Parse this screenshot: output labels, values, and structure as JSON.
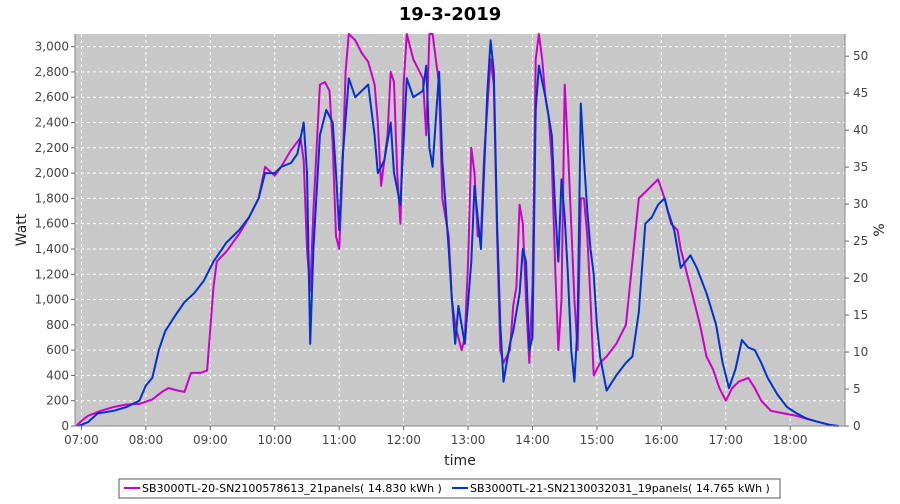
{
  "chart_data": {
    "type": "line",
    "title": "19-3-2019",
    "xlabel": "time",
    "ylabel": "Watt",
    "y2label": "%",
    "xlim": [
      6.9,
      18.85
    ],
    "ylim": [
      0,
      3100
    ],
    "y2lim": [
      0,
      53
    ],
    "x_ticks": [
      "07:00",
      "08:00",
      "09:00",
      "10:00",
      "11:00",
      "12:00",
      "13:00",
      "14:00",
      "15:00",
      "16:00",
      "17:00",
      "18:00"
    ],
    "y_ticks": [
      "0",
      "200",
      "400",
      "600",
      "800",
      "1,000",
      "1,200",
      "1,400",
      "1,600",
      "1,800",
      "2,000",
      "2,200",
      "2,400",
      "2,600",
      "2,800",
      "3,000"
    ],
    "y2_ticks": [
      "0",
      "5",
      "10",
      "15",
      "20",
      "25",
      "30",
      "35",
      "40",
      "45",
      "50"
    ],
    "grid": true,
    "legend_position": "bottom",
    "background": "#c8c8c8",
    "series": [
      {
        "name": "SB3000TL-20-SN2100578613_21panels( 14.830 kWh )",
        "color": "#cc00cc",
        "points": [
          [
            6.92,
            0
          ],
          [
            7.0,
            40
          ],
          [
            7.1,
            80
          ],
          [
            7.3,
            120
          ],
          [
            7.5,
            150
          ],
          [
            7.7,
            170
          ],
          [
            7.9,
            175
          ],
          [
            8.1,
            210
          ],
          [
            8.25,
            270
          ],
          [
            8.35,
            300
          ],
          [
            8.5,
            280
          ],
          [
            8.6,
            270
          ],
          [
            8.7,
            420
          ],
          [
            8.85,
            420
          ],
          [
            8.95,
            440
          ],
          [
            9.05,
            1100
          ],
          [
            9.1,
            1300
          ],
          [
            9.25,
            1380
          ],
          [
            9.45,
            1520
          ],
          [
            9.6,
            1650
          ],
          [
            9.75,
            1800
          ],
          [
            9.85,
            2050
          ],
          [
            10.0,
            1980
          ],
          [
            10.1,
            2050
          ],
          [
            10.25,
            2180
          ],
          [
            10.4,
            2280
          ],
          [
            10.45,
            2100
          ],
          [
            10.5,
            1400
          ],
          [
            10.55,
            1070
          ],
          [
            10.6,
            1700
          ],
          [
            10.7,
            2700
          ],
          [
            10.78,
            2720
          ],
          [
            10.85,
            2650
          ],
          [
            10.9,
            2230
          ],
          [
            10.95,
            1500
          ],
          [
            11.0,
            1400
          ],
          [
            11.05,
            2000
          ],
          [
            11.1,
            2800
          ],
          [
            11.15,
            3100
          ],
          [
            11.25,
            3050
          ],
          [
            11.35,
            2950
          ],
          [
            11.45,
            2880
          ],
          [
            11.55,
            2700
          ],
          [
            11.6,
            2400
          ],
          [
            11.65,
            1900
          ],
          [
            11.75,
            2300
          ],
          [
            11.8,
            2800
          ],
          [
            11.85,
            2720
          ],
          [
            11.9,
            2000
          ],
          [
            11.95,
            1600
          ],
          [
            12.0,
            2700
          ],
          [
            12.05,
            3100
          ],
          [
            12.15,
            2900
          ],
          [
            12.3,
            2750
          ],
          [
            12.35,
            2300
          ],
          [
            12.4,
            3100
          ],
          [
            12.45,
            3100
          ],
          [
            12.55,
            2700
          ],
          [
            12.6,
            1800
          ],
          [
            12.7,
            1500
          ],
          [
            12.75,
            1000
          ],
          [
            12.8,
            800
          ],
          [
            12.9,
            600
          ],
          [
            12.95,
            700
          ],
          [
            13.0,
            1300
          ],
          [
            13.05,
            2200
          ],
          [
            13.1,
            2000
          ],
          [
            13.15,
            1500
          ],
          [
            13.2,
            1500
          ],
          [
            13.25,
            2150
          ],
          [
            13.35,
            2900
          ],
          [
            13.4,
            2700
          ],
          [
            13.45,
            1500
          ],
          [
            13.5,
            600
          ],
          [
            13.55,
            500
          ],
          [
            13.65,
            600
          ],
          [
            13.7,
            950
          ],
          [
            13.75,
            1100
          ],
          [
            13.8,
            1750
          ],
          [
            13.85,
            1600
          ],
          [
            13.9,
            1000
          ],
          [
            13.95,
            500
          ],
          [
            14.0,
            1100
          ],
          [
            14.05,
            2900
          ],
          [
            14.1,
            3100
          ],
          [
            14.15,
            2900
          ],
          [
            14.2,
            2600
          ],
          [
            14.25,
            2450
          ],
          [
            14.3,
            2100
          ],
          [
            14.35,
            1300
          ],
          [
            14.4,
            600
          ],
          [
            14.45,
            1000
          ],
          [
            14.5,
            2700
          ],
          [
            14.55,
            2200
          ],
          [
            14.6,
            1600
          ],
          [
            14.65,
            1000
          ],
          [
            14.7,
            600
          ],
          [
            14.75,
            1800
          ],
          [
            14.8,
            1800
          ],
          [
            14.85,
            1500
          ],
          [
            14.9,
            1000
          ],
          [
            14.95,
            400
          ],
          [
            15.05,
            500
          ],
          [
            15.15,
            550
          ],
          [
            15.3,
            650
          ],
          [
            15.45,
            800
          ],
          [
            15.55,
            1300
          ],
          [
            15.65,
            1800
          ],
          [
            15.75,
            1850
          ],
          [
            15.85,
            1900
          ],
          [
            15.95,
            1950
          ],
          [
            16.05,
            1800
          ],
          [
            16.15,
            1600
          ],
          [
            16.25,
            1550
          ],
          [
            16.3,
            1400
          ],
          [
            16.4,
            1200
          ],
          [
            16.5,
            1000
          ],
          [
            16.6,
            800
          ],
          [
            16.7,
            550
          ],
          [
            16.8,
            450
          ],
          [
            16.9,
            300
          ],
          [
            17.0,
            200
          ],
          [
            17.1,
            300
          ],
          [
            17.2,
            350
          ],
          [
            17.35,
            380
          ],
          [
            17.45,
            300
          ],
          [
            17.55,
            200
          ],
          [
            17.7,
            120
          ],
          [
            17.9,
            100
          ],
          [
            18.1,
            80
          ],
          [
            18.3,
            50
          ],
          [
            18.45,
            30
          ],
          [
            18.6,
            10
          ],
          [
            18.7,
            0
          ]
        ]
      },
      {
        "name": "SB3000TL-21-SN2130032031_19panels( 14.765 kWh )",
        "color": "#0033cc",
        "points": [
          [
            6.95,
            0
          ],
          [
            7.1,
            30
          ],
          [
            7.25,
            100
          ],
          [
            7.5,
            120
          ],
          [
            7.7,
            150
          ],
          [
            7.9,
            200
          ],
          [
            8.0,
            320
          ],
          [
            8.1,
            380
          ],
          [
            8.2,
            600
          ],
          [
            8.3,
            750
          ],
          [
            8.45,
            870
          ],
          [
            8.6,
            980
          ],
          [
            8.75,
            1050
          ],
          [
            8.9,
            1150
          ],
          [
            9.05,
            1300
          ],
          [
            9.25,
            1450
          ],
          [
            9.45,
            1550
          ],
          [
            9.6,
            1650
          ],
          [
            9.75,
            1800
          ],
          [
            9.85,
            2000
          ],
          [
            10.0,
            2000
          ],
          [
            10.1,
            2050
          ],
          [
            10.25,
            2080
          ],
          [
            10.35,
            2150
          ],
          [
            10.45,
            2400
          ],
          [
            10.5,
            2000
          ],
          [
            10.55,
            650
          ],
          [
            10.6,
            1400
          ],
          [
            10.7,
            2300
          ],
          [
            10.8,
            2500
          ],
          [
            10.9,
            2400
          ],
          [
            10.95,
            2000
          ],
          [
            11.0,
            1550
          ],
          [
            11.05,
            2100
          ],
          [
            11.15,
            2750
          ],
          [
            11.25,
            2600
          ],
          [
            11.35,
            2650
          ],
          [
            11.45,
            2700
          ],
          [
            11.55,
            2300
          ],
          [
            11.6,
            2000
          ],
          [
            11.7,
            2100
          ],
          [
            11.8,
            2400
          ],
          [
            11.85,
            2000
          ],
          [
            11.95,
            1750
          ],
          [
            12.05,
            2750
          ],
          [
            12.15,
            2600
          ],
          [
            12.3,
            2650
          ],
          [
            12.35,
            2850
          ],
          [
            12.4,
            2200
          ],
          [
            12.45,
            2050
          ],
          [
            12.55,
            2800
          ],
          [
            12.6,
            2100
          ],
          [
            12.7,
            1400
          ],
          [
            12.75,
            1000
          ],
          [
            12.8,
            650
          ],
          [
            12.85,
            950
          ],
          [
            12.95,
            650
          ],
          [
            13.05,
            1300
          ],
          [
            13.1,
            1900
          ],
          [
            13.2,
            1400
          ],
          [
            13.3,
            2650
          ],
          [
            13.35,
            3050
          ],
          [
            13.4,
            2800
          ],
          [
            13.45,
            1600
          ],
          [
            13.5,
            800
          ],
          [
            13.55,
            350
          ],
          [
            13.65,
            650
          ],
          [
            13.7,
            750
          ],
          [
            13.8,
            1050
          ],
          [
            13.85,
            1400
          ],
          [
            13.9,
            1300
          ],
          [
            13.95,
            600
          ],
          [
            14.0,
            700
          ],
          [
            14.05,
            2500
          ],
          [
            14.1,
            2850
          ],
          [
            14.2,
            2600
          ],
          [
            14.3,
            2300
          ],
          [
            14.35,
            1750
          ],
          [
            14.4,
            1300
          ],
          [
            14.45,
            1950
          ],
          [
            14.5,
            1650
          ],
          [
            14.55,
            1200
          ],
          [
            14.6,
            600
          ],
          [
            14.65,
            350
          ],
          [
            14.7,
            800
          ],
          [
            14.75,
            2550
          ],
          [
            14.8,
            2100
          ],
          [
            14.85,
            1700
          ],
          [
            14.9,
            1400
          ],
          [
            14.95,
            1200
          ],
          [
            15.0,
            800
          ],
          [
            15.05,
            550
          ],
          [
            15.15,
            280
          ],
          [
            15.3,
            400
          ],
          [
            15.45,
            500
          ],
          [
            15.55,
            550
          ],
          [
            15.65,
            900
          ],
          [
            15.75,
            1600
          ],
          [
            15.85,
            1650
          ],
          [
            15.95,
            1750
          ],
          [
            16.05,
            1800
          ],
          [
            16.1,
            1700
          ],
          [
            16.2,
            1550
          ],
          [
            16.3,
            1250
          ],
          [
            16.45,
            1350
          ],
          [
            16.55,
            1250
          ],
          [
            16.7,
            1050
          ],
          [
            16.85,
            800
          ],
          [
            16.95,
            500
          ],
          [
            17.05,
            300
          ],
          [
            17.15,
            450
          ],
          [
            17.25,
            680
          ],
          [
            17.35,
            620
          ],
          [
            17.45,
            600
          ],
          [
            17.55,
            500
          ],
          [
            17.65,
            380
          ],
          [
            17.8,
            250
          ],
          [
            17.95,
            150
          ],
          [
            18.1,
            100
          ],
          [
            18.25,
            60
          ],
          [
            18.45,
            30
          ],
          [
            18.6,
            10
          ],
          [
            18.75,
            0
          ]
        ]
      }
    ]
  }
}
